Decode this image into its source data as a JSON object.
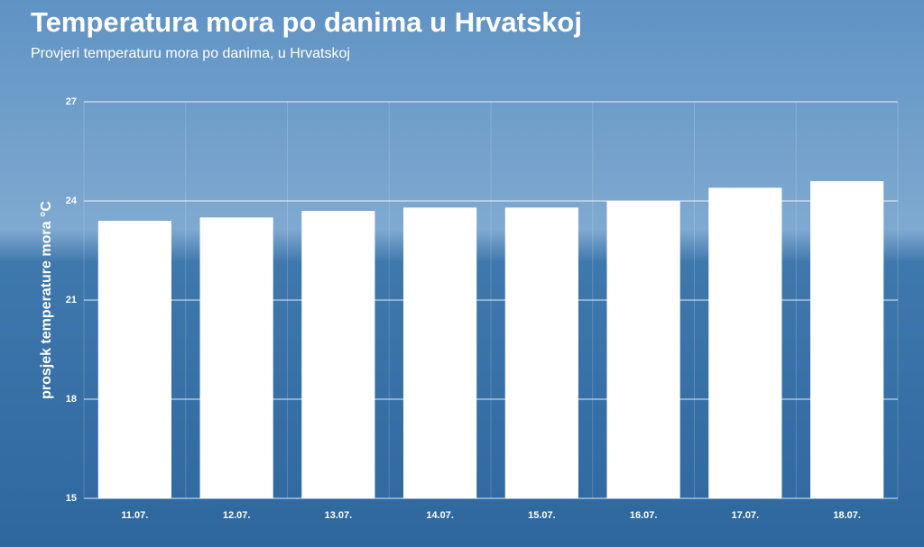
{
  "chart_data": {
    "type": "bar",
    "title": "Temperatura mora po danima u Hrvatskoj",
    "subtitle": "Provjeri temperaturu mora po danima, u Hrvatskoj",
    "y_label": "prosjek temperature mora °C",
    "categories": [
      "11.07.",
      "12.07.",
      "13.07.",
      "14.07.",
      "15.07.",
      "16.07.",
      "17.07.",
      "18.07."
    ],
    "values": [
      23.4,
      23.5,
      23.7,
      23.8,
      23.8,
      24.0,
      24.4,
      24.6
    ],
    "color": "#ffffff",
    "ylim": [
      15,
      27
    ],
    "yticks": [
      15,
      18,
      21,
      24,
      27
    ],
    "grid": true
  }
}
